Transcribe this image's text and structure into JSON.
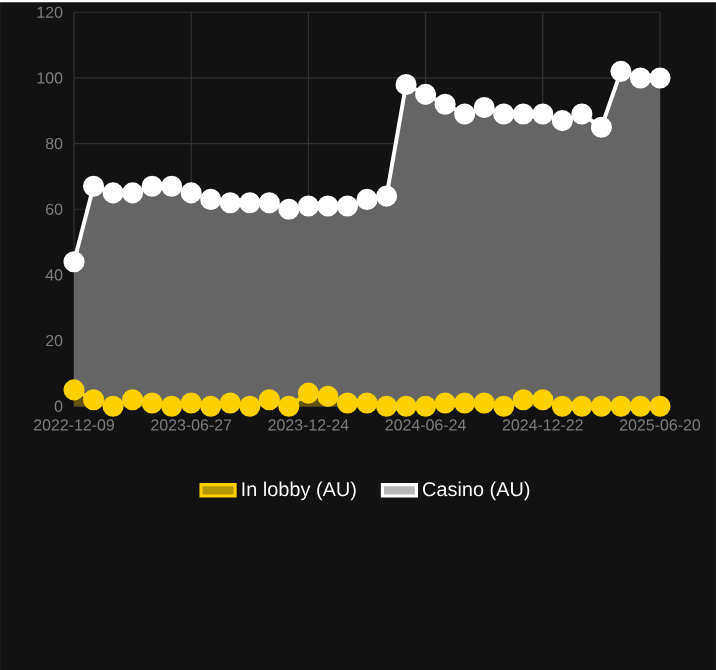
{
  "chart_data": {
    "type": "area",
    "categories": [
      "2022-12-09",
      null,
      null,
      null,
      null,
      null,
      "2023-06-27",
      null,
      null,
      null,
      null,
      null,
      "2023-12-24",
      null,
      null,
      null,
      null,
      null,
      "2024-06-24",
      null,
      null,
      null,
      null,
      null,
      "2024-12-22",
      null,
      null,
      null,
      null,
      null,
      "2025-06-20"
    ],
    "series": [
      {
        "name": "In lobby (AU)",
        "color": "#ffd000",
        "values": [
          5,
          2,
          0,
          2,
          1,
          0,
          1,
          0,
          1,
          0,
          2,
          0,
          4,
          3,
          1,
          1,
          0,
          0,
          0,
          1,
          1,
          1,
          0,
          2,
          2,
          0,
          0,
          0,
          0,
          0,
          0
        ]
      },
      {
        "name": "Casino (AU)",
        "color": "#ffffff",
        "values": [
          44,
          67,
          65,
          65,
          67,
          67,
          65,
          63,
          62,
          62,
          62,
          60,
          61,
          61,
          61,
          63,
          64,
          98,
          95,
          92,
          89,
          91,
          89,
          89,
          89,
          87,
          89,
          85,
          102,
          100,
          100
        ]
      }
    ],
    "ylim": [
      0,
      120
    ],
    "yticks": [
      0,
      20,
      40,
      60,
      80,
      100,
      120
    ],
    "grid": true,
    "legend": "bottom",
    "marker": "circle",
    "line_style": "solid"
  }
}
